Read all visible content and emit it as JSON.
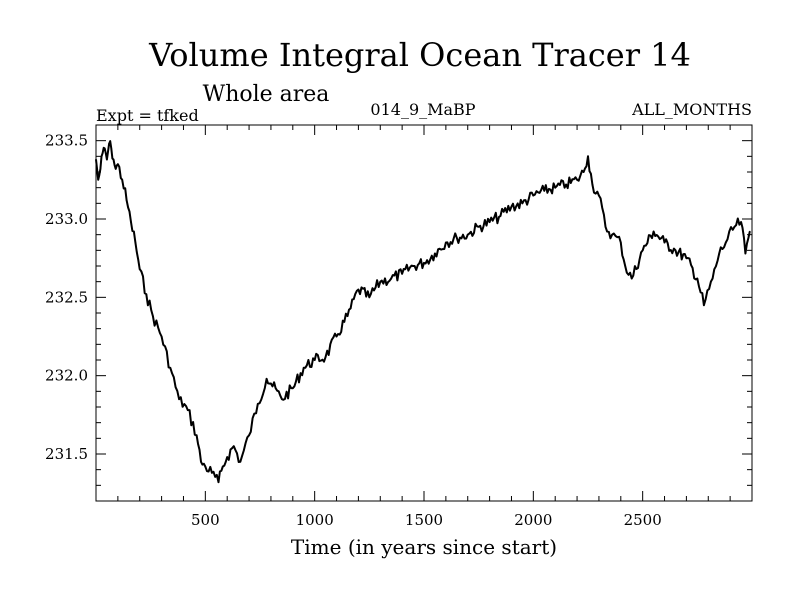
{
  "chart_data": {
    "type": "line",
    "title": "Volume Integral Ocean Tracer 14",
    "subtitle": "Whole area",
    "experiment_label": "Expt = tfked",
    "run_label": "014_9_MaBP",
    "months_label": "ALL_MONTHS",
    "xlabel": "Time (in years since start)",
    "ylabel": "",
    "xlim": [
      0,
      3000
    ],
    "ylim": [
      231.2,
      233.6
    ],
    "x_ticks": [
      500,
      1000,
      1500,
      2000,
      2500
    ],
    "x_tick_labels": [
      "500",
      "1000",
      "1500",
      "2000",
      "2500"
    ],
    "y_ticks": [
      231.5,
      232.0,
      232.5,
      233.0,
      233.5
    ],
    "y_tick_labels": [
      "231.5",
      "232.0",
      "232.5",
      "233.0",
      "233.5"
    ],
    "grid": false,
    "line_color": "#000000",
    "series": [
      {
        "x": [
          0,
          10,
          20,
          30,
          40,
          50,
          60,
          70,
          80,
          90,
          100,
          120,
          140,
          160,
          180,
          200,
          230,
          260,
          300,
          340,
          380,
          420,
          460,
          480,
          500,
          530,
          560,
          580,
          600,
          630,
          660,
          700,
          740,
          780,
          800,
          850,
          900,
          950,
          1000,
          1050,
          1100,
          1150,
          1200,
          1250,
          1300,
          1350,
          1400,
          1450,
          1500,
          1550,
          1600,
          1650,
          1700,
          1750,
          1800,
          1850,
          1900,
          1950,
          2000,
          2050,
          2100,
          2150,
          2200,
          2230,
          2250,
          2270,
          2300,
          2330,
          2360,
          2400,
          2420,
          2450,
          2500,
          2550,
          2600,
          2650,
          2700,
          2750,
          2780,
          2820,
          2850,
          2880,
          2920,
          2950,
          2970,
          2990
        ],
        "values": [
          233.38,
          233.25,
          233.32,
          233.42,
          233.45,
          233.38,
          233.48,
          233.45,
          233.38,
          233.32,
          233.35,
          233.25,
          233.12,
          232.98,
          232.85,
          232.68,
          232.52,
          232.38,
          232.25,
          232.05,
          231.85,
          231.78,
          231.62,
          231.45,
          231.42,
          231.38,
          231.32,
          231.42,
          231.48,
          231.55,
          231.45,
          231.62,
          231.82,
          231.98,
          231.95,
          231.85,
          231.92,
          232.05,
          232.1,
          232.12,
          232.25,
          232.38,
          232.55,
          232.5,
          232.6,
          232.62,
          232.65,
          232.7,
          232.72,
          232.78,
          232.85,
          232.88,
          232.9,
          232.95,
          232.98,
          233.02,
          233.08,
          233.1,
          233.15,
          233.18,
          233.2,
          233.22,
          233.25,
          233.3,
          233.4,
          233.22,
          233.15,
          232.95,
          232.9,
          232.85,
          232.7,
          232.62,
          232.8,
          232.92,
          232.85,
          232.8,
          232.75,
          232.62,
          232.45,
          232.62,
          232.78,
          232.85,
          232.95,
          232.98,
          232.78,
          232.92
        ]
      }
    ]
  }
}
